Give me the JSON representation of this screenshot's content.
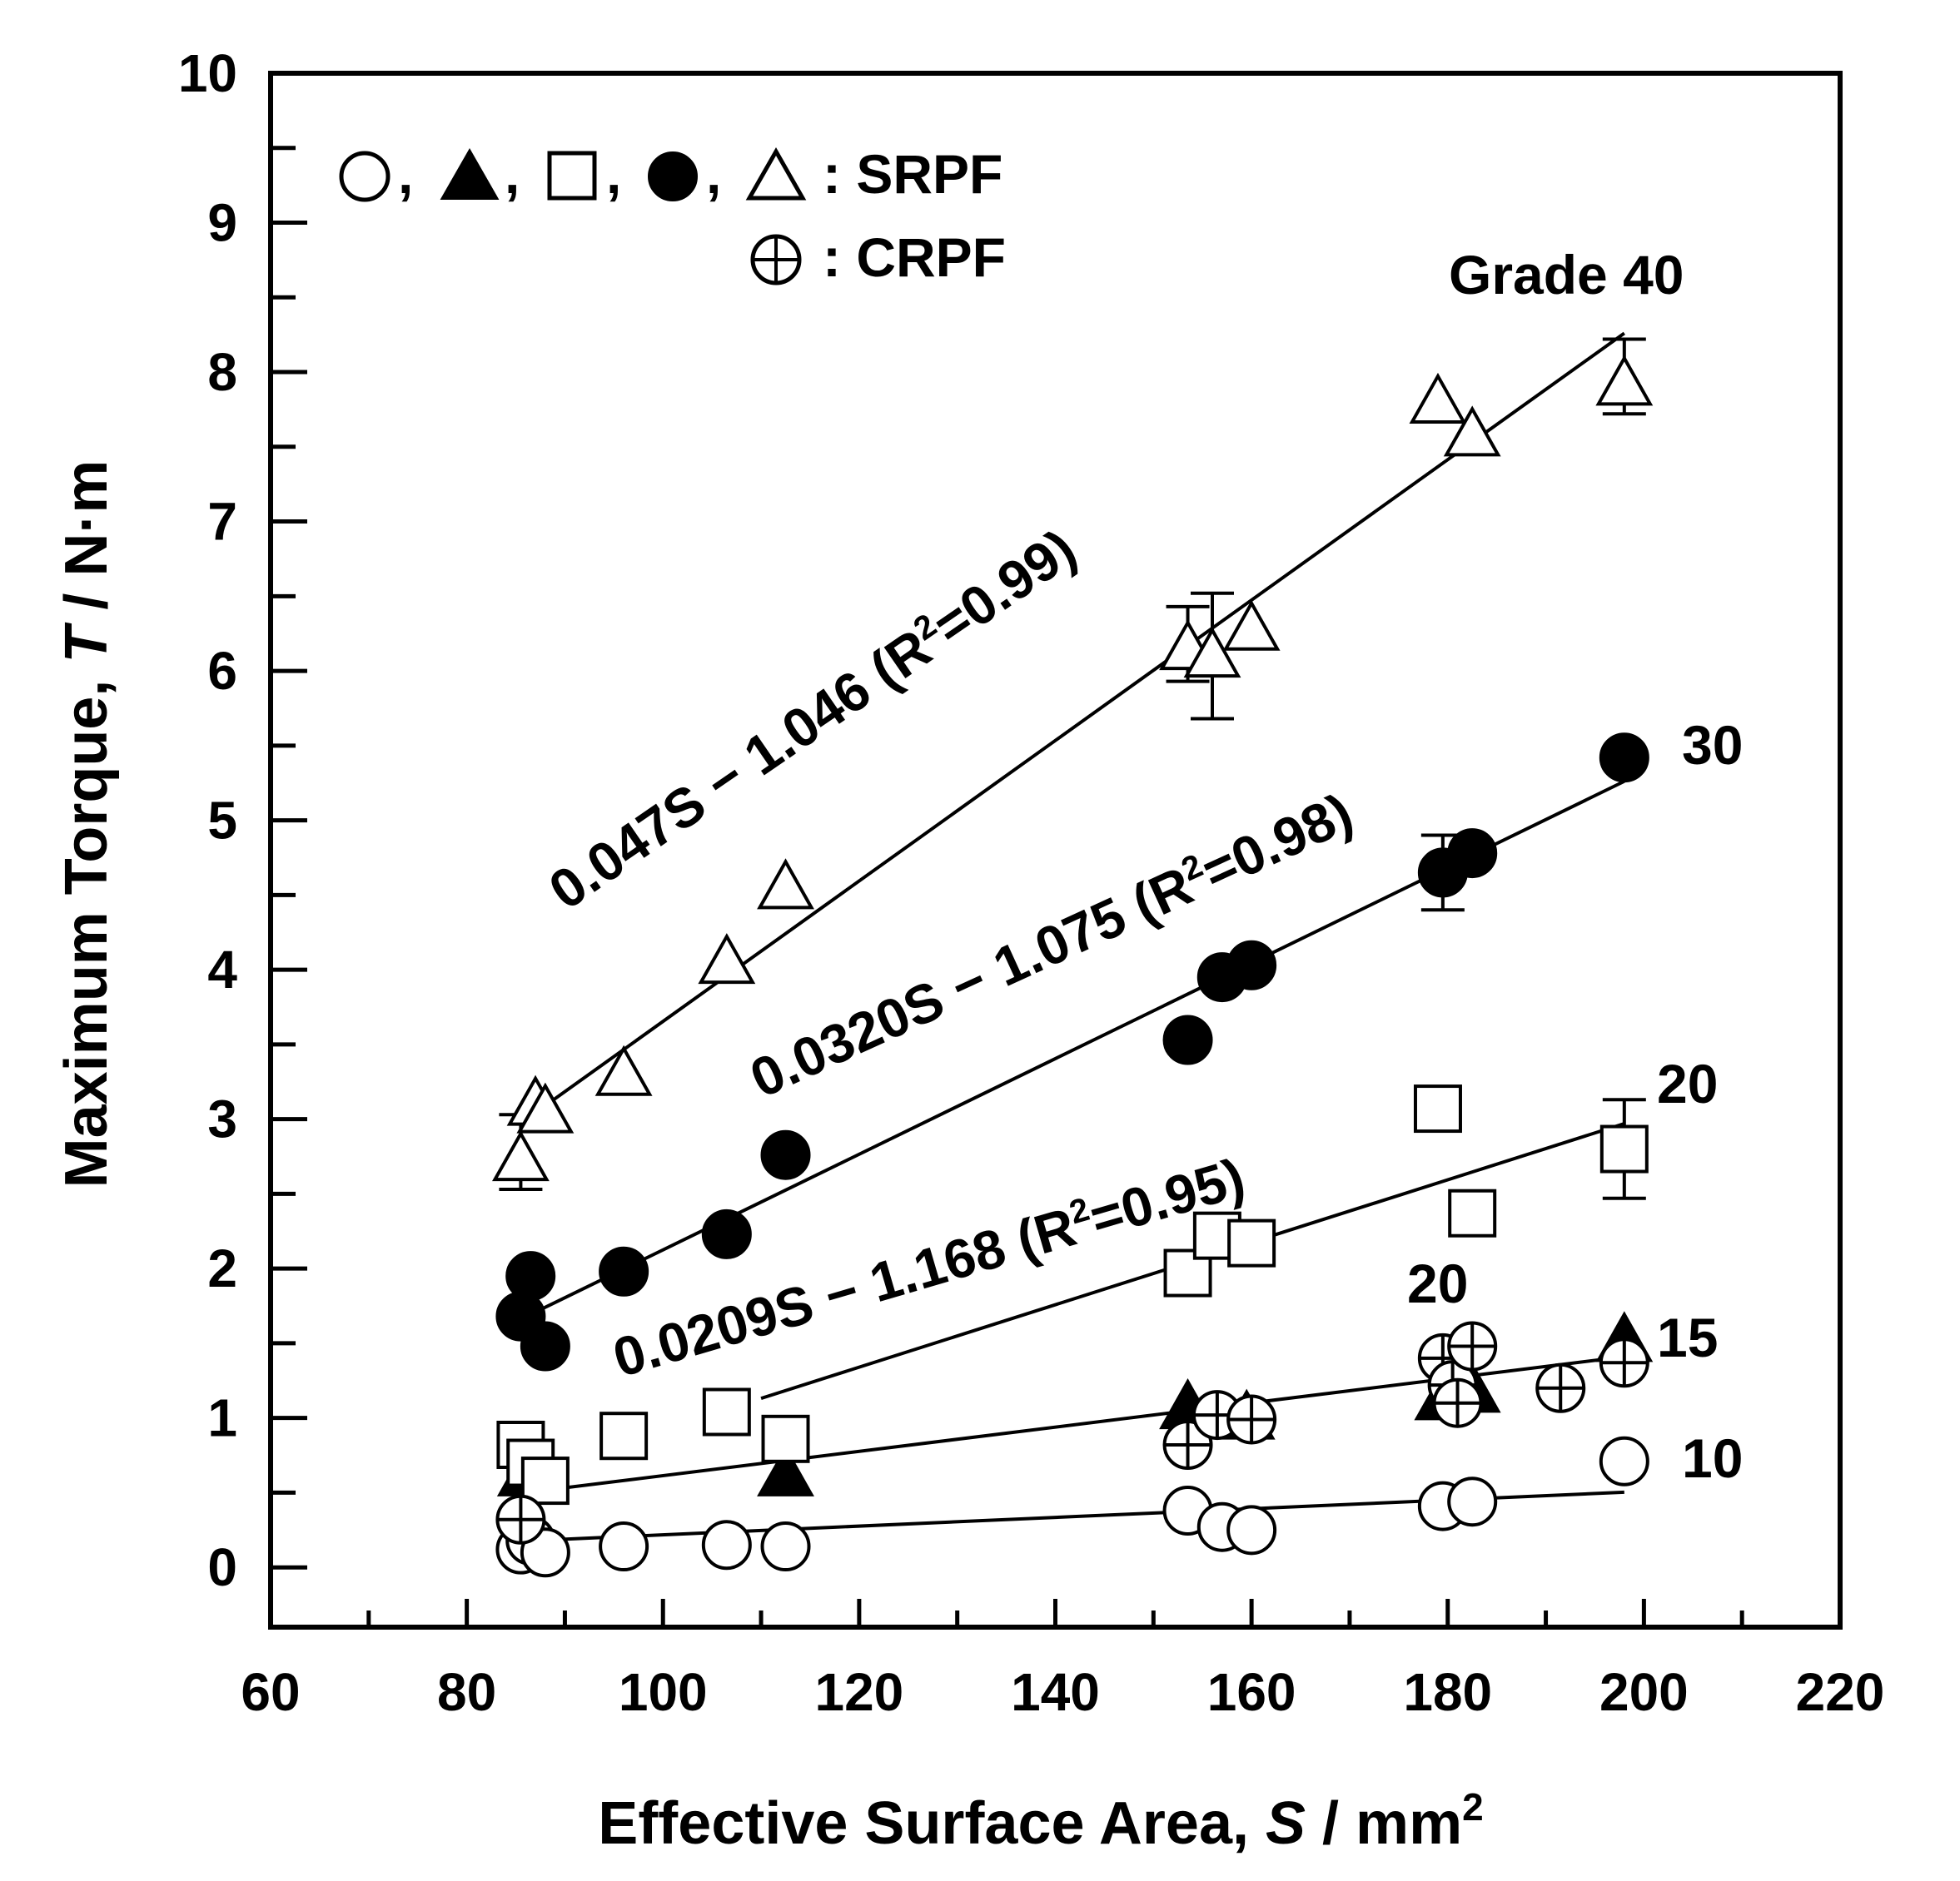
{
  "chart_data": {
    "type": "scatter",
    "title": "",
    "xlabel": {
      "prefix": "Effective Surface Area, ",
      "var": "S",
      "unit": " / mm",
      "sup": "2"
    },
    "ylabel": {
      "prefix": "Maximum Torque, ",
      "var": "T",
      "unit": " / N·m"
    },
    "xlim": [
      60,
      220
    ],
    "ylim": [
      0,
      10
    ],
    "xticks": [
      60,
      80,
      100,
      120,
      140,
      160,
      180,
      200,
      220
    ],
    "yticks": [
      0,
      1,
      2,
      3,
      4,
      5,
      6,
      7,
      8,
      9,
      10
    ],
    "legend": {
      "srpf_label": ": SRPF",
      "crpf_label": ": CRPF",
      "separator": ","
    },
    "series": [
      {
        "name": "Grade 10 (SRPF)",
        "marker": "circle-open",
        "points": [
          [
            85.5,
            0.12
          ],
          [
            86.5,
            0.18
          ],
          [
            88,
            0.1
          ],
          [
            96,
            0.14
          ],
          [
            106.5,
            0.15
          ],
          [
            112.5,
            0.14
          ],
          [
            153.5,
            0.38
          ],
          [
            157,
            0.27
          ],
          [
            160,
            0.25
          ],
          [
            179.5,
            0.41
          ],
          [
            182.5,
            0.44
          ],
          [
            198,
            0.71
          ]
        ]
      },
      {
        "name": "Grade 15 (SRPF)",
        "marker": "triangle-filled",
        "points": [
          [
            86,
            0.62
          ],
          [
            112.5,
            0.62
          ],
          [
            153.5,
            1.07
          ],
          [
            159.5,
            1.0
          ],
          [
            179.5,
            1.13
          ],
          [
            182.5,
            1.18
          ],
          [
            198,
            1.52
          ]
        ]
      },
      {
        "name": "Grade 20 (SRPF)",
        "marker": "square-open",
        "points": [
          [
            85.5,
            0.82
          ],
          [
            86.5,
            0.7
          ],
          [
            88,
            0.58
          ],
          [
            96,
            0.88
          ],
          [
            106.5,
            1.04
          ],
          [
            112.5,
            0.86
          ],
          [
            153.5,
            1.97
          ],
          [
            156.5,
            2.22
          ],
          [
            160,
            2.17
          ],
          [
            179,
            3.07
          ],
          [
            182.5,
            2.37
          ],
          [
            198,
            2.8
          ]
        ],
        "errorbars": [
          {
            "x": 198,
            "y": 2.8,
            "low": 2.47,
            "high": 3.13
          }
        ]
      },
      {
        "name": "Grade 30 (SRPF)",
        "marker": "circle-filled",
        "points": [
          [
            85.5,
            1.68
          ],
          [
            86.5,
            1.95
          ],
          [
            88,
            1.48
          ],
          [
            96,
            1.98
          ],
          [
            106.5,
            2.23
          ],
          [
            112.5,
            2.76
          ],
          [
            153.5,
            3.53
          ],
          [
            157,
            3.95
          ],
          [
            160,
            4.03
          ],
          [
            179.5,
            4.65
          ],
          [
            182.5,
            4.78
          ],
          [
            198,
            5.42
          ]
        ],
        "errorbars": [
          {
            "x": 179.5,
            "y": 4.65,
            "low": 4.4,
            "high": 4.9
          }
        ]
      },
      {
        "name": "Grade 40 (SRPF)",
        "marker": "triangle-open",
        "points": [
          [
            85.5,
            2.73
          ],
          [
            87,
            3.1
          ],
          [
            88,
            3.05
          ],
          [
            96,
            3.3
          ],
          [
            106.5,
            4.05
          ],
          [
            112.5,
            4.55
          ],
          [
            153.5,
            6.15
          ],
          [
            156,
            6.1
          ],
          [
            160,
            6.28
          ],
          [
            179,
            7.8
          ],
          [
            182.5,
            7.58
          ],
          [
            198,
            7.92
          ]
        ],
        "errorbars": [
          {
            "x": 85.5,
            "y": 2.73,
            "low": 2.53,
            "high": 3.03
          },
          {
            "x": 153.5,
            "y": 6.15,
            "low": 5.93,
            "high": 6.43
          },
          {
            "x": 156,
            "y": 6.1,
            "low": 5.68,
            "high": 6.52
          },
          {
            "x": 198,
            "y": 7.92,
            "low": 7.72,
            "high": 8.22
          }
        ]
      },
      {
        "name": "CRPF",
        "marker": "circle-plus",
        "points": [
          [
            85.5,
            0.32
          ],
          [
            153.5,
            0.82
          ],
          [
            156.5,
            1.02
          ],
          [
            160,
            0.99
          ],
          [
            179.5,
            1.4
          ],
          [
            180.5,
            1.22
          ],
          [
            181,
            1.1
          ],
          [
            182.5,
            1.48
          ],
          [
            191.5,
            1.2
          ],
          [
            198,
            1.37
          ]
        ]
      }
    ],
    "fit_lines": [
      {
        "name": "Grade 40 fit",
        "x_range": [
          87,
          198
        ],
        "slope": 0.047,
        "intercept": -1.046,
        "label": "0.047S − 1.046 (R",
        "sup": "2",
        "r2": "=0.99)"
      },
      {
        "name": "Grade 30 fit",
        "x_range": [
          87,
          198
        ],
        "slope": 0.032,
        "intercept": -1.075,
        "label": "0.0320S − 1.075 (R",
        "sup": "2",
        "r2": "=0.98)"
      },
      {
        "name": "Grade 20 fit",
        "x_range": [
          110,
          198
        ],
        "slope": 0.0209,
        "intercept": -1.168,
        "label": "0.0209S − 1.168 (R",
        "sup": "2",
        "r2": "=0.95)"
      },
      {
        "name": "Grade 15 fit",
        "x_range": [
          86,
          198
        ],
        "slope": 0.00812,
        "intercept": -0.198
      },
      {
        "name": "Grade 10 fit",
        "x_range": [
          88,
          198
        ],
        "slope": 0.00291,
        "intercept": -0.073
      }
    ],
    "annotations": [
      {
        "name": "grade-40-label",
        "text": "Grade 40"
      },
      {
        "name": "grade-30-label",
        "text": "30"
      },
      {
        "name": "grade-20-label",
        "text": "20"
      },
      {
        "name": "grade-20-crpf-label",
        "text": "20"
      },
      {
        "name": "grade-15-label",
        "text": "15"
      },
      {
        "name": "grade-10-label",
        "text": "10"
      }
    ]
  }
}
